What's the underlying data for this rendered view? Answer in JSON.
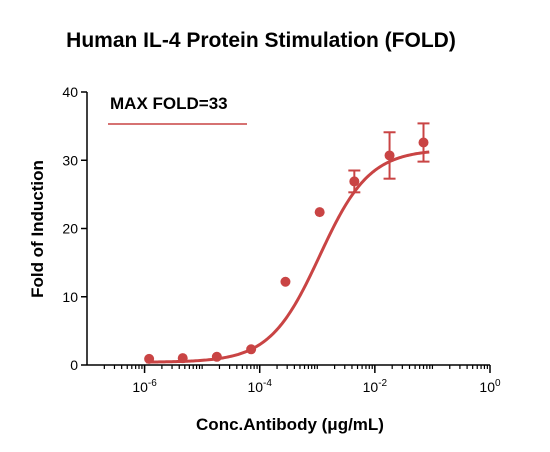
{
  "chart_data": {
    "type": "scatter",
    "title": "Human IL-4 Protein Stimulation (FOLD)",
    "xlabel": "Conc.Antibody (μg/mL)",
    "ylabel": "Fold of Induction",
    "x_scale": "log",
    "xlim": [
      1e-07,
      1
    ],
    "ylim": [
      0,
      40
    ],
    "y_ticks": [
      0,
      10,
      20,
      30,
      40
    ],
    "x_ticks": [
      {
        "value": 1e-06,
        "base": "10",
        "exp": "-6"
      },
      {
        "value": 0.0001,
        "base": "10",
        "exp": "-4"
      },
      {
        "value": 0.01,
        "base": "10",
        "exp": "-2"
      },
      {
        "value": 1,
        "base": "10",
        "exp": "0"
      }
    ],
    "annotation": "MAX FOLD=33",
    "color": "#c94444",
    "fit": {
      "bottom": 0.4,
      "top": 31.6,
      "ec50": 0.0011,
      "hill": 1.0
    },
    "points": [
      {
        "x": 1.2e-06,
        "y": 0.9,
        "err": 0
      },
      {
        "x": 4.6e-06,
        "y": 1.0,
        "err": 0
      },
      {
        "x": 1.8e-05,
        "y": 1.2,
        "err": 0
      },
      {
        "x": 7.1e-05,
        "y": 2.3,
        "err": 0
      },
      {
        "x": 0.00028,
        "y": 12.2,
        "err": 0
      },
      {
        "x": 0.0011,
        "y": 22.4,
        "err": 0
      },
      {
        "x": 0.0044,
        "y": 26.9,
        "err": 1.6
      },
      {
        "x": 0.018,
        "y": 30.7,
        "err": 3.4
      },
      {
        "x": 0.07,
        "y": 32.6,
        "err": 2.8
      }
    ]
  }
}
